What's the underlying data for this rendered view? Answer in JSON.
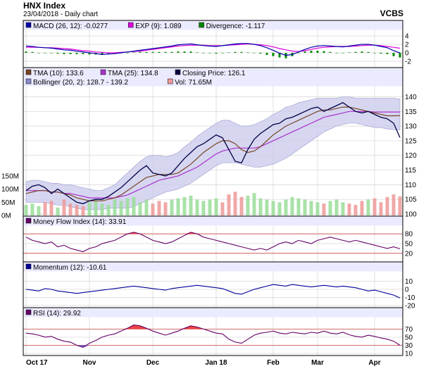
{
  "header": {
    "title": "HNX Index",
    "subtitle": "23/04/2018 - Daily chart",
    "symbol": "VCBS"
  },
  "colors": {
    "panel_bg": "#ffffff",
    "legend_bg": "#ebebff",
    "band": "#ccccee",
    "grid": "#d4d4d4",
    "macd": "#0000aa",
    "exp": "#dd00dd",
    "divergence": "#008800",
    "tma10": "#774422",
    "tma25": "#aa33cc",
    "close": "#000044",
    "vol_up": "#99dd99",
    "vol_down": "#ee9999",
    "osc_line": "#000099",
    "osc_fill": "#ee4444",
    "level": "#cc4444"
  },
  "chart_data": [
    {
      "type": "line",
      "panel": "macd",
      "legend": [
        {
          "label": "MACD (26, 12): -0.0277",
          "color": "#0000aa"
        },
        {
          "label": "EXP (9): 1.089",
          "color": "#dd00dd"
        },
        {
          "label": "Divergence: -1.117",
          "color": "#008800"
        }
      ],
      "ylim": [
        -3,
        5
      ],
      "yticks": [
        "4",
        "2",
        "0",
        "-2"
      ],
      "macd": [
        1.6,
        1.5,
        1.3,
        1.2,
        1.1,
        0.9,
        0.7,
        0.6,
        0.4,
        0.2,
        0.0,
        -0.2,
        -0.4,
        -0.3,
        -0.2,
        0.0,
        0.2,
        0.4,
        0.6,
        0.8,
        1.0,
        1.2,
        1.4,
        1.6,
        1.9,
        2.0,
        2.1,
        1.9,
        1.7,
        1.6,
        1.5,
        1.7,
        1.9,
        2.1,
        2.2,
        2.2,
        2.0,
        1.7,
        1.2,
        0.6,
        -0.1,
        -0.6,
        -0.4,
        0.2,
        0.8,
        1.3,
        1.6,
        1.7,
        1.6,
        1.5,
        1.4,
        1.6,
        1.8,
        2.0,
        2.0,
        1.8,
        1.5,
        1.2,
        0.5,
        -0.03
      ],
      "exp": [
        1.3,
        1.3,
        1.3,
        1.2,
        1.2,
        1.1,
        1.0,
        0.9,
        0.7,
        0.5,
        0.4,
        0.2,
        0.1,
        0.0,
        0.0,
        0.1,
        0.2,
        0.3,
        0.4,
        0.6,
        0.8,
        1.0,
        1.2,
        1.4,
        1.6,
        1.7,
        1.8,
        1.8,
        1.8,
        1.7,
        1.7,
        1.7,
        1.8,
        1.9,
        2.0,
        2.1,
        2.0,
        1.9,
        1.7,
        1.4,
        1.0,
        0.7,
        0.4,
        0.3,
        0.5,
        0.8,
        1.1,
        1.3,
        1.4,
        1.5,
        1.5,
        1.5,
        1.6,
        1.7,
        1.8,
        1.8,
        1.7,
        1.5,
        1.3,
        1.09
      ],
      "divergence": [
        0.3,
        0.2,
        0.0,
        0.0,
        -0.1,
        -0.2,
        -0.3,
        -0.3,
        -0.3,
        -0.3,
        -0.4,
        -0.4,
        -0.5,
        -0.3,
        -0.2,
        -0.1,
        0.0,
        0.1,
        0.2,
        0.2,
        0.2,
        0.2,
        0.2,
        0.2,
        0.3,
        0.3,
        0.3,
        0.1,
        -0.1,
        -0.1,
        -0.2,
        0.0,
        0.1,
        0.2,
        0.2,
        0.1,
        0.0,
        -0.2,
        -0.5,
        -0.8,
        -1.1,
        -1.3,
        -0.8,
        -0.1,
        0.3,
        0.5,
        0.5,
        0.4,
        0.2,
        0.0,
        -0.1,
        0.1,
        0.2,
        0.3,
        0.2,
        0.0,
        -0.2,
        -0.3,
        -0.8,
        -1.117
      ]
    },
    {
      "type": "line",
      "panel": "price",
      "legend": [
        {
          "label": "TMA (10): 133.6",
          "color": "#774422"
        },
        {
          "label": "TMA (25): 134.8",
          "color": "#aa33cc"
        },
        {
          "label": "Closing Price: 126.1",
          "color": "#000044"
        },
        {
          "label": "Bollinger (20, 2): 128.7 - 139.2",
          "color": "#8888cc"
        },
        {
          "label": "Vol: 71.65M",
          "color": "#ee9999"
        }
      ],
      "ylim": [
        100,
        143
      ],
      "yticks": [
        "140",
        "135",
        "130",
        "125",
        "120",
        "115",
        "110",
        "105",
        "100"
      ],
      "vol_ticks": [
        "150M",
        "100M",
        "50M",
        "0M"
      ],
      "vol_max": 150,
      "close": [
        108,
        109.5,
        110,
        109,
        107,
        108.5,
        107,
        105.5,
        104,
        103.5,
        104.5,
        105,
        105,
        106,
        107.5,
        109,
        111,
        113,
        115,
        116.5,
        114,
        113.5,
        113,
        114,
        116.5,
        119,
        121,
        123,
        124,
        125.5,
        127,
        126,
        122,
        118,
        117.5,
        122,
        125.5,
        127.5,
        129,
        130.5,
        131,
        132.5,
        133,
        134,
        135,
        136,
        136.5,
        135,
        136,
        137,
        138,
        136.5,
        135,
        134.5,
        135,
        134,
        133,
        132.5,
        131,
        126.1
      ],
      "tma10": [
        107,
        107.5,
        108,
        108,
        107.5,
        107.5,
        107,
        106.5,
        105.5,
        105,
        104.5,
        104.5,
        104.5,
        105,
        105.5,
        106.5,
        108,
        109.5,
        111,
        112.5,
        113,
        113.5,
        113.5,
        113.5,
        114,
        115.5,
        117,
        119,
        121,
        122.5,
        124,
        125,
        125,
        124,
        122,
        121,
        121.5,
        123,
        125,
        127,
        128.5,
        130,
        131,
        132,
        133,
        134,
        135,
        135.5,
        135.5,
        136,
        136.5,
        136.5,
        136,
        135.5,
        135,
        134.5,
        134,
        133.5,
        133.5,
        133.6
      ],
      "tma25": [
        108,
        108,
        108,
        108,
        107.5,
        107.5,
        107,
        107,
        106.5,
        106,
        105.5,
        105.5,
        105.5,
        105.5,
        105.5,
        106,
        106.5,
        107.5,
        108.5,
        109.5,
        110.5,
        111.5,
        112,
        112.5,
        113,
        114,
        115,
        116,
        117.5,
        119,
        120.5,
        121.5,
        122,
        122.5,
        122.5,
        122.5,
        122.5,
        123,
        124,
        125,
        126,
        127,
        128,
        129,
        130,
        131,
        132,
        133,
        133.5,
        134,
        134.5,
        135,
        135,
        135,
        135,
        134.8,
        134.8,
        134.8,
        134.8,
        134.8
      ],
      "boll_upper": [
        111,
        111.5,
        111.5,
        111,
        110.5,
        110.5,
        110,
        110,
        109.5,
        109,
        108.5,
        108,
        108,
        109,
        110,
        112,
        114,
        116,
        118,
        119.5,
        120,
        120,
        119.5,
        120,
        121,
        123,
        124.5,
        126.5,
        128,
        129.5,
        131,
        132,
        132,
        131,
        130,
        130,
        130.5,
        131.5,
        132.5,
        134,
        135,
        136.5,
        137,
        138,
        138.5,
        139,
        139.5,
        139.5,
        139.5,
        139.5,
        140,
        140,
        139.5,
        139.5,
        139.5,
        139.5,
        139.5,
        139.5,
        139.5,
        139.2
      ],
      "boll_lower": [
        104,
        104,
        104,
        104,
        103.5,
        103,
        103,
        102.5,
        102,
        101.5,
        101.5,
        101.5,
        101.5,
        102,
        102,
        102,
        102,
        102.5,
        103.5,
        104.5,
        105.5,
        106.5,
        107.5,
        108,
        108.5,
        109.5,
        110.5,
        112,
        113.5,
        115,
        116.5,
        117.5,
        117.5,
        117.5,
        117,
        116.5,
        116,
        116,
        116.5,
        117,
        118,
        119,
        120.5,
        122,
        123.5,
        125,
        126.5,
        128,
        129,
        130,
        130.5,
        131,
        131,
        130.5,
        130,
        129.5,
        129.5,
        129,
        128.8,
        128.7
      ],
      "volume": [
        40,
        45,
        35,
        50,
        55,
        30,
        60,
        45,
        40,
        35,
        50,
        55,
        45,
        40,
        60,
        55,
        65,
        70,
        50,
        60,
        45,
        55,
        50,
        60,
        65,
        70,
        75,
        60,
        55,
        60,
        65,
        50,
        80,
        90,
        70,
        75,
        85,
        65,
        60,
        55,
        50,
        60,
        70,
        65,
        60,
        55,
        50,
        45,
        55,
        60,
        50,
        45,
        40,
        55,
        60,
        65,
        50,
        70,
        80,
        72
      ]
    },
    {
      "type": "line",
      "panel": "mfi",
      "legend": [
        {
          "label": "Money Flow Index (14): 33.91",
          "color": "#660066"
        }
      ],
      "ylim": [
        0,
        100
      ],
      "yticks": [
        "80",
        "50",
        "20"
      ],
      "levels": [
        80,
        20
      ],
      "values": [
        70,
        60,
        55,
        50,
        55,
        40,
        45,
        35,
        30,
        25,
        35,
        40,
        50,
        55,
        60,
        70,
        80,
        85,
        80,
        70,
        60,
        55,
        50,
        55,
        65,
        75,
        85,
        80,
        70,
        65,
        60,
        55,
        50,
        45,
        40,
        35,
        30,
        35,
        30,
        40,
        50,
        55,
        50,
        60,
        55,
        50,
        60,
        65,
        70,
        65,
        60,
        55,
        60,
        55,
        50,
        45,
        40,
        35,
        40,
        33.91
      ]
    },
    {
      "type": "line",
      "panel": "momentum",
      "legend": [
        {
          "label": "Momentum (12): -10.61",
          "color": "#000099"
        }
      ],
      "ylim": [
        -20,
        20
      ],
      "yticks": [
        "10",
        "0",
        "-10",
        "-20"
      ],
      "values": [
        0,
        -1,
        -2,
        1,
        0,
        -2,
        -3,
        -4,
        -5,
        -4,
        -3,
        -2,
        -1,
        0,
        1,
        2,
        3,
        4,
        3,
        2,
        1,
        0,
        -1,
        1,
        2,
        3,
        4,
        5,
        4,
        3,
        2,
        1,
        -2,
        -5,
        -6,
        -3,
        0,
        2,
        4,
        6,
        5,
        4,
        6,
        5,
        4,
        3,
        4,
        5,
        4,
        3,
        4,
        3,
        2,
        0,
        -2,
        -1,
        -3,
        -5,
        -7,
        -10.61
      ]
    },
    {
      "type": "line",
      "panel": "rsi",
      "legend": [
        {
          "label": "RSI (14): 29.92",
          "color": "#660066"
        }
      ],
      "ylim": [
        10,
        95
      ],
      "yticks": [
        "70",
        "50",
        "30",
        "10"
      ],
      "levels": [
        70,
        30
      ],
      "values": [
        60,
        58,
        55,
        50,
        52,
        45,
        40,
        38,
        30,
        25,
        35,
        42,
        50,
        55,
        58,
        65,
        72,
        80,
        78,
        72,
        65,
        60,
        55,
        60,
        65,
        72,
        78,
        75,
        70,
        65,
        60,
        58,
        45,
        38,
        35,
        45,
        55,
        60,
        62,
        65,
        60,
        58,
        62,
        60,
        58,
        62,
        60,
        65,
        60,
        58,
        62,
        56,
        52,
        50,
        55,
        52,
        48,
        45,
        40,
        29.92
      ]
    }
  ],
  "x_axis": {
    "labels": [
      "Oct 17",
      "Nov",
      "Dec",
      "Jan 18",
      "Feb",
      "Mar",
      "Apr"
    ],
    "label_idx": [
      0,
      10,
      20,
      30,
      39,
      46,
      55
    ]
  }
}
